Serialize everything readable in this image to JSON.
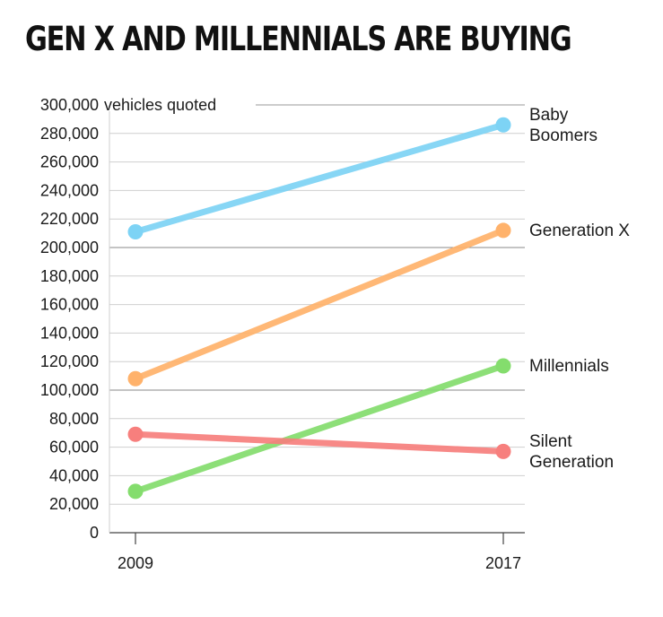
{
  "chart_data": {
    "type": "line",
    "title": "GEN X AND MILLENNIALS ARE BUYING",
    "unit_label": "vehicles quoted",
    "x": [
      "2009",
      "2017"
    ],
    "ylim": [
      0,
      300000
    ],
    "y_ticks": [
      "0",
      "20,000",
      "40,000",
      "60,000",
      "80,000",
      "100,000",
      "120,000",
      "140,000",
      "160,000",
      "180,000",
      "200,000",
      "220,000",
      "240,000",
      "260,000",
      "280,000",
      "300,000"
    ],
    "grid": true,
    "series": [
      {
        "name": "Baby Boomers",
        "label_lines": [
          "Baby",
          "Boomers"
        ],
        "values": [
          211000,
          286000
        ],
        "color": "#7dd3f5"
      },
      {
        "name": "Generation X",
        "label_lines": [
          "Generation X"
        ],
        "values": [
          108000,
          212000
        ],
        "color": "#ffb26b"
      },
      {
        "name": "Millennials",
        "label_lines": [
          "Millennials"
        ],
        "values": [
          29000,
          117000
        ],
        "color": "#84dd6d"
      },
      {
        "name": "Silent Generation",
        "label_lines": [
          "Silent",
          "Generation"
        ],
        "values": [
          69000,
          57000
        ],
        "color": "#f77f7d"
      }
    ]
  }
}
